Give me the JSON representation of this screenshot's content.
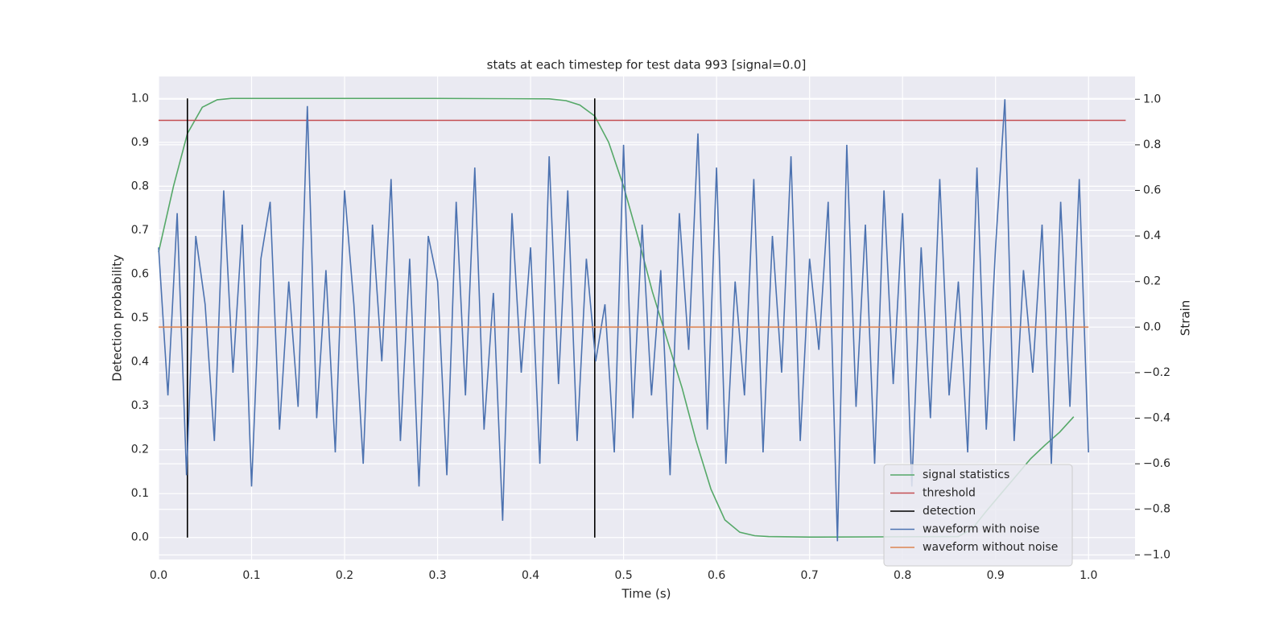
{
  "chart_data": {
    "type": "line",
    "title": "stats at each timestep for test data 993 [signal=0.0]",
    "xlabel": "Time (s)",
    "ylabel": "Detection probability",
    "y2label": "Strain",
    "xlim": [
      0,
      1.05
    ],
    "ylim": [
      -0.05,
      1.05
    ],
    "y2lim": [
      -1.02,
      1.1
    ],
    "xticks": [
      {
        "value": 0,
        "label": "0.0"
      },
      0.1,
      0.2,
      0.3,
      0.4,
      0.5,
      0.6,
      0.7,
      0.8,
      0.9,
      {
        "value": 1,
        "label": "1.0"
      }
    ],
    "yticks": [
      {
        "value": 0,
        "label": "0.0"
      },
      0.1,
      0.2,
      0.3,
      0.4,
      0.5,
      0.6,
      0.7,
      0.8,
      0.9,
      {
        "value": 1,
        "label": "1.0"
      }
    ],
    "y2ticks": [
      {
        "value": -1,
        "label": "−1.0"
      },
      {
        "value": -0.8,
        "label": "−0.8"
      },
      {
        "value": -0.6,
        "label": "−0.6"
      },
      {
        "value": -0.4,
        "label": "−0.4"
      },
      {
        "value": -0.2,
        "label": "−0.2"
      },
      {
        "value": 0,
        "label": "0.0"
      },
      0.2,
      0.4,
      0.6,
      0.8,
      {
        "value": 1,
        "label": "1.0"
      }
    ],
    "grid": true,
    "legend": "lower right",
    "series": [
      {
        "name": "signal statistics",
        "color": "#55a868",
        "axis": "y",
        "x": [
          0,
          0.016,
          0.031,
          0.047,
          0.063,
          0.078,
          0.2,
          0.3,
          0.42,
          0.438,
          0.453,
          0.469,
          0.484,
          0.5,
          0.516,
          0.531,
          0.547,
          0.563,
          0.578,
          0.594,
          0.609,
          0.625,
          0.641,
          0.656,
          0.7,
          0.86,
          0.875,
          0.89,
          0.906,
          0.922,
          0.938,
          0.953,
          0.969,
          0.984
        ],
        "values": [
          0.65,
          0.8,
          0.92,
          0.98,
          0.997,
          1.0,
          1.0,
          1.0,
          0.999,
          0.995,
          0.985,
          0.96,
          0.9,
          0.8,
          0.68,
          0.56,
          0.45,
          0.34,
          0.22,
          0.11,
          0.04,
          0.012,
          0.004,
          0.002,
          0.001,
          0.002,
          0.02,
          0.06,
          0.1,
          0.14,
          0.18,
          0.21,
          0.24,
          0.275
        ]
      },
      {
        "name": "threshold",
        "color": "#c44e52",
        "axis": "y",
        "x": [
          0,
          1.04
        ],
        "values": [
          0.95,
          0.95
        ]
      },
      {
        "name": "detection",
        "color": "#000000",
        "axis": "y",
        "x": [
          0.031,
          0.031,
          0.031,
          0.469,
          0.469
        ],
        "values": [
          0,
          1,
          null,
          0,
          1
        ]
      },
      {
        "name": "waveform with noise",
        "color": "#4c72b0",
        "axis": "y2",
        "x": [
          0,
          0.01,
          0.02,
          0.03,
          0.04,
          0.05,
          0.06,
          0.07,
          0.08,
          0.09,
          0.1,
          0.11,
          0.12,
          0.13,
          0.14,
          0.15,
          0.16,
          0.17,
          0.18,
          0.19,
          0.2,
          0.21,
          0.22,
          0.23,
          0.24,
          0.25,
          0.26,
          0.27,
          0.28,
          0.29,
          0.3,
          0.31,
          0.32,
          0.33,
          0.34,
          0.35,
          0.36,
          0.37,
          0.38,
          0.39,
          0.4,
          0.41,
          0.42,
          0.43,
          0.44,
          0.45,
          0.46,
          0.47,
          0.48,
          0.49,
          0.5,
          0.51,
          0.52,
          0.53,
          0.54,
          0.55,
          0.56,
          0.57,
          0.58,
          0.59,
          0.6,
          0.61,
          0.62,
          0.63,
          0.64,
          0.65,
          0.66,
          0.67,
          0.68,
          0.69,
          0.7,
          0.71,
          0.72,
          0.73,
          0.74,
          0.75,
          0.76,
          0.77,
          0.78,
          0.79,
          0.8,
          0.81,
          0.82,
          0.83,
          0.84,
          0.85,
          0.86,
          0.87,
          0.88,
          0.89,
          0.9,
          0.91,
          0.92,
          0.93,
          0.94,
          0.95,
          0.96,
          0.97,
          0.98,
          0.99,
          1
        ],
        "values": [
          0.35,
          -0.3,
          0.5,
          -0.65,
          0.4,
          0.1,
          -0.5,
          0.6,
          -0.2,
          0.45,
          -0.7,
          0.3,
          0.55,
          -0.45,
          0.2,
          -0.35,
          0.97,
          -0.4,
          0.25,
          -0.55,
          0.6,
          0.1,
          -0.6,
          0.45,
          -0.15,
          0.65,
          -0.5,
          0.3,
          -0.7,
          0.4,
          0.2,
          -0.65,
          0.55,
          -0.3,
          0.7,
          -0.45,
          0.15,
          -0.85,
          0.5,
          -0.2,
          0.35,
          -0.6,
          0.75,
          -0.25,
          0.6,
          -0.5,
          0.3,
          -0.15,
          0.1,
          -0.55,
          0.8,
          -0.4,
          0.45,
          -0.3,
          0.25,
          -0.65,
          0.5,
          -0.1,
          0.85,
          -0.45,
          0.7,
          -0.6,
          0.2,
          -0.3,
          0.65,
          -0.55,
          0.4,
          -0.2,
          0.75,
          -0.5,
          0.3,
          -0.1,
          0.55,
          -0.94,
          0.8,
          -0.35,
          0.45,
          -0.6,
          0.6,
          -0.25,
          0.5,
          -0.7,
          0.35,
          -0.4,
          0.65,
          -0.3,
          0.2,
          -0.55,
          0.7,
          -0.45,
          0.35,
          1.0,
          -0.5,
          0.25,
          -0.2,
          0.45,
          -0.6,
          0.55,
          -0.35,
          0.65,
          -0.55
        ]
      },
      {
        "name": "waveform without noise",
        "color": "#dd8452",
        "axis": "y2",
        "x": [
          0,
          1
        ],
        "values": [
          0,
          0
        ]
      }
    ]
  }
}
